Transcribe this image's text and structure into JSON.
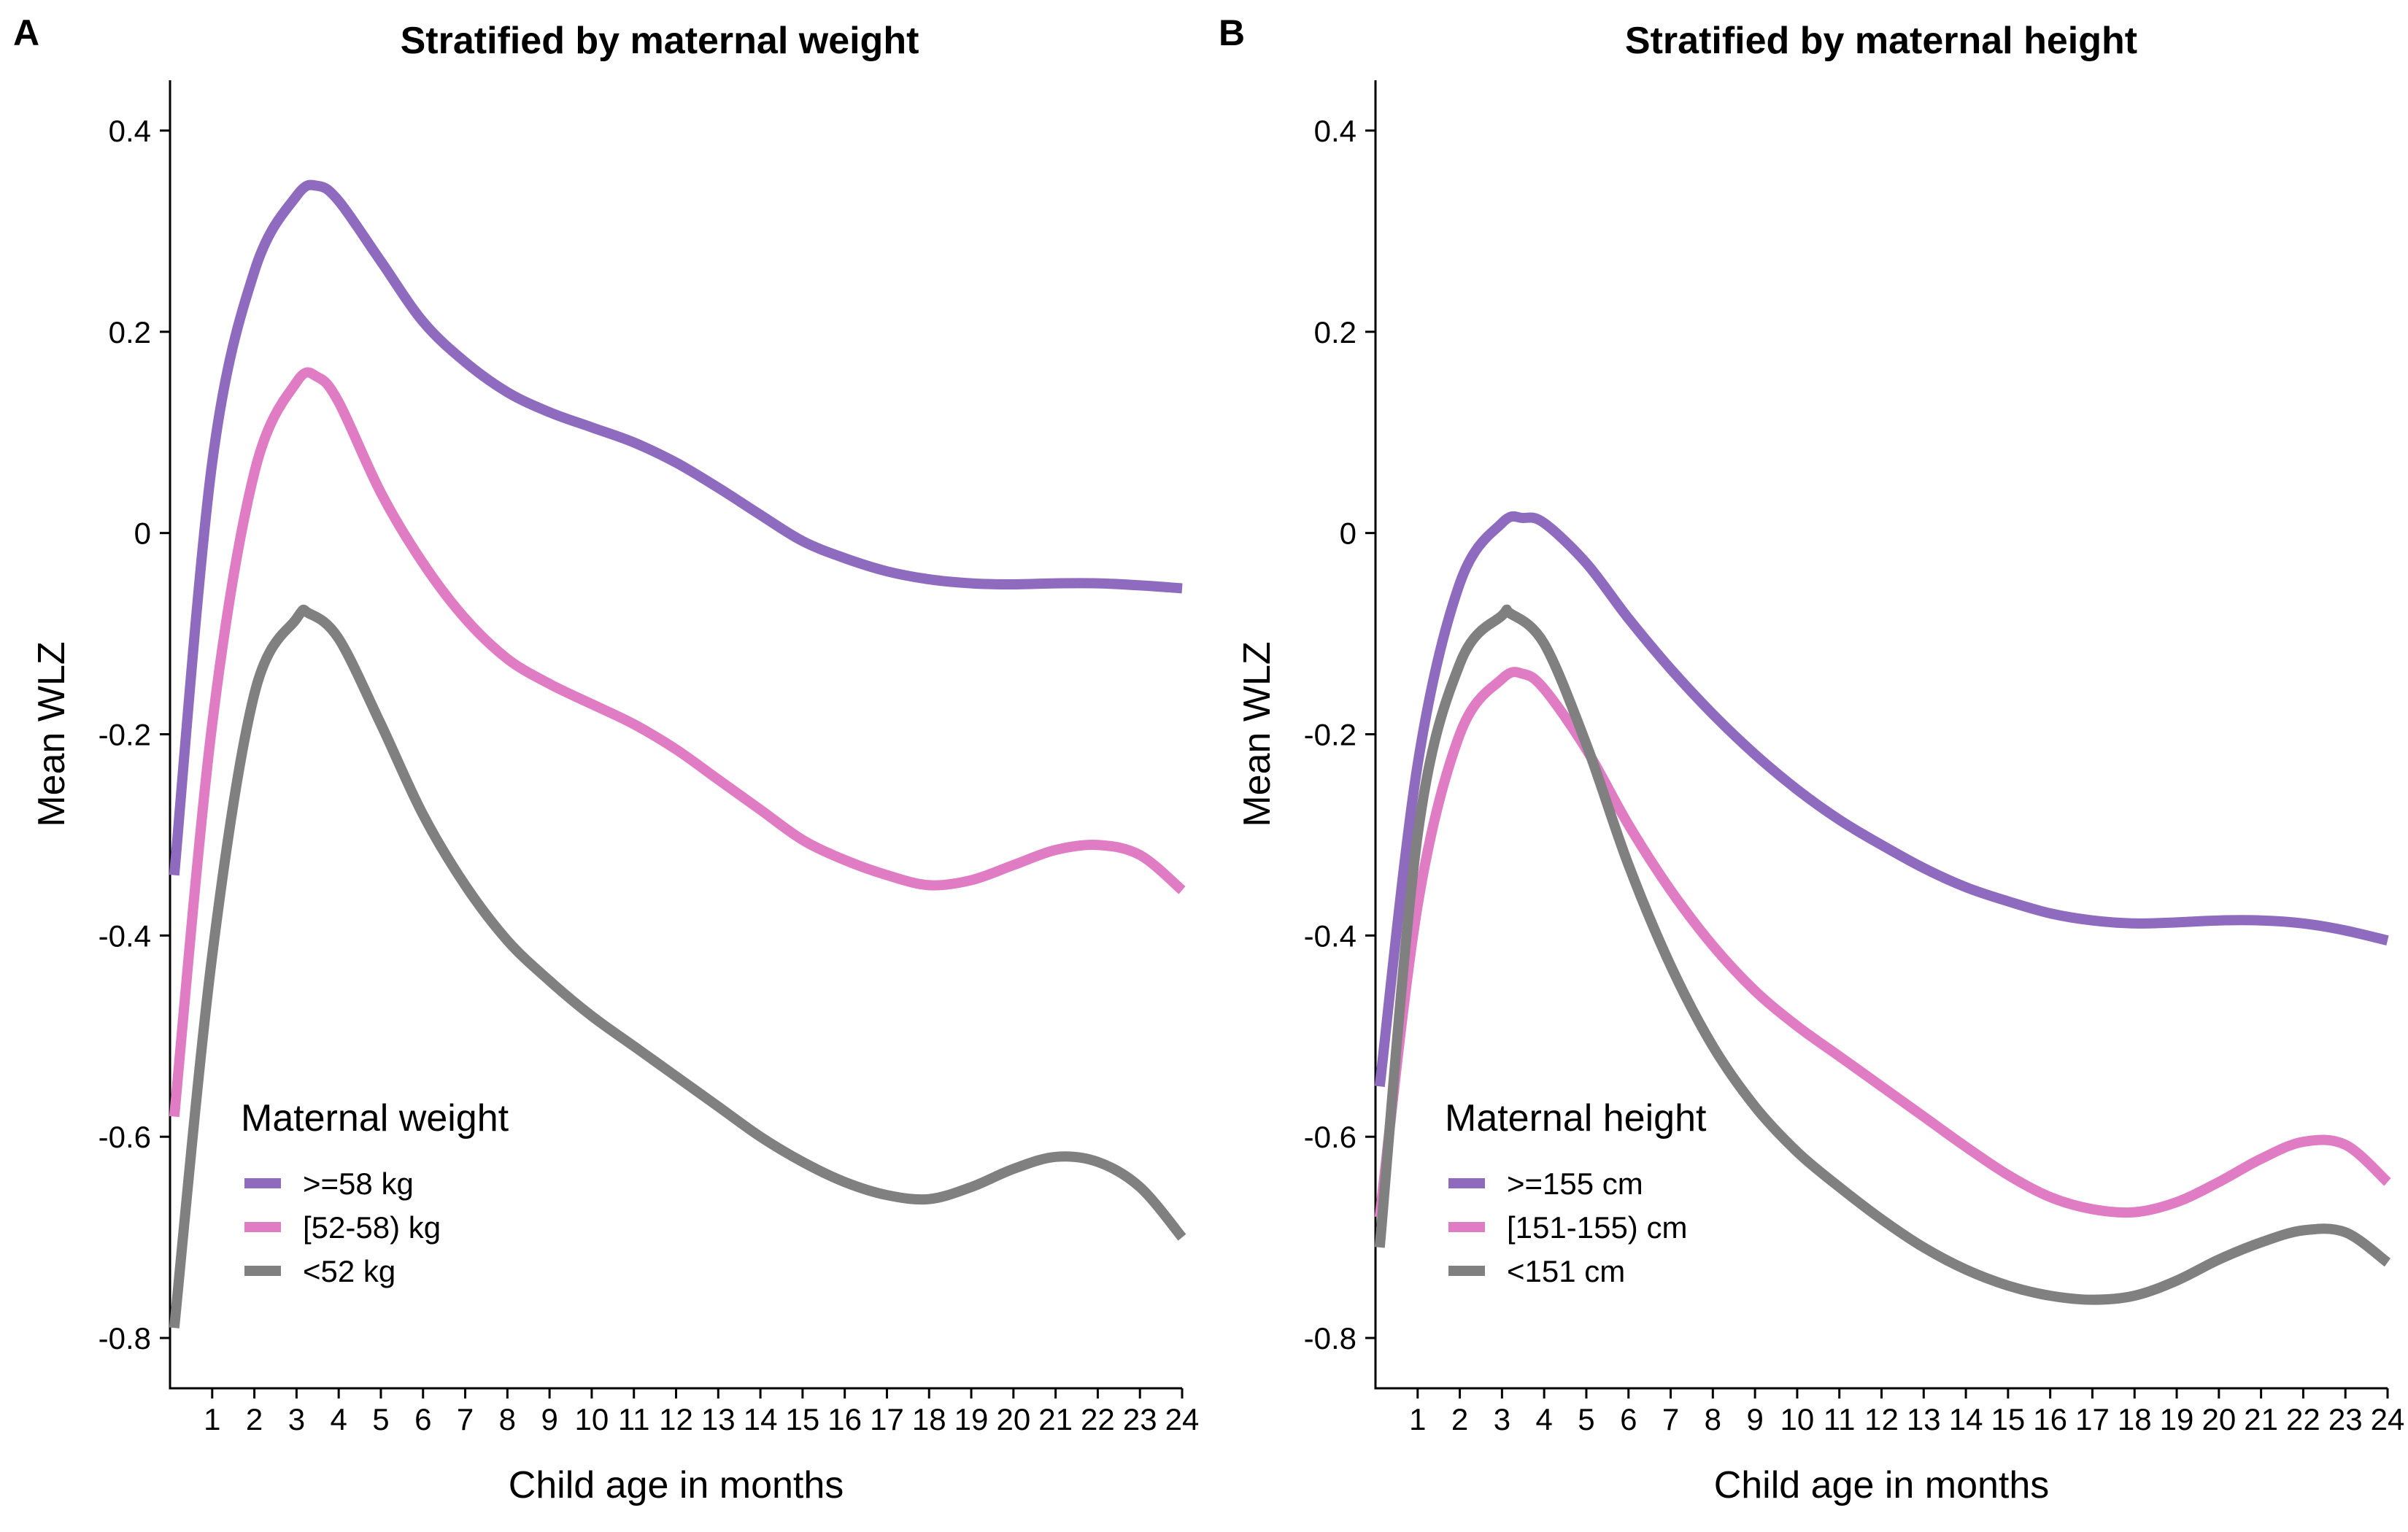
{
  "chart_data": [
    {
      "panel_letter": "A",
      "type": "line",
      "title": "Stratified by maternal weight",
      "xlabel": "Child age in months",
      "ylabel": "Mean WLZ",
      "xlim": [
        0,
        24
      ],
      "ylim": [
        -0.85,
        0.45
      ],
      "x_ticks": [
        1,
        2,
        3,
        4,
        5,
        6,
        7,
        8,
        9,
        10,
        11,
        12,
        13,
        14,
        15,
        16,
        17,
        18,
        19,
        20,
        21,
        22,
        23,
        24
      ],
      "x_tick_labels": [
        "1",
        "2",
        "3",
        "4",
        "5",
        "6",
        "7",
        "8",
        "9",
        "10",
        "11",
        "12",
        "13",
        "14",
        "15",
        "16",
        "17",
        "18",
        "19",
        "20",
        "21",
        "22",
        "23",
        "24"
      ],
      "y_ticks": [
        -0.8,
        -0.6,
        -0.4,
        -0.2,
        0,
        0.2,
        0.4
      ],
      "y_tick_labels": [
        "-0.8",
        "-0.6",
        "-0.4",
        "-0.2",
        "0",
        "0.2",
        "0.4"
      ],
      "grid": false,
      "legend": {
        "title": "Maternal weight",
        "position": "bottom-left"
      },
      "series": [
        {
          "name": ">=58 kg",
          "color": "#8E6BBF",
          "x": [
            0.1,
            1,
            2,
            3,
            3.5,
            4,
            5,
            6,
            7,
            8,
            9,
            10,
            11,
            12,
            13,
            14,
            15,
            16,
            17,
            18,
            19,
            20,
            21,
            22,
            23,
            24
          ],
          "y": [
            -0.34,
            0.07,
            0.26,
            0.335,
            0.345,
            0.33,
            0.27,
            0.21,
            0.17,
            0.14,
            0.12,
            0.105,
            0.09,
            0.07,
            0.045,
            0.018,
            -0.008,
            -0.025,
            -0.038,
            -0.046,
            -0.05,
            -0.051,
            -0.05,
            -0.05,
            -0.052,
            -0.055
          ]
        },
        {
          "name": "[52-58) kg",
          "color": "#E07CC3",
          "x": [
            0.1,
            1,
            2,
            3,
            3.5,
            4,
            5,
            6,
            7,
            8,
            9,
            10,
            11,
            12,
            13,
            14,
            15,
            16,
            17,
            18,
            19,
            20,
            21,
            22,
            23,
            24
          ],
          "y": [
            -0.58,
            -0.19,
            0.06,
            0.15,
            0.155,
            0.13,
            0.04,
            -0.03,
            -0.085,
            -0.125,
            -0.15,
            -0.17,
            -0.19,
            -0.215,
            -0.245,
            -0.275,
            -0.305,
            -0.325,
            -0.34,
            -0.35,
            -0.345,
            -0.33,
            -0.315,
            -0.31,
            -0.32,
            -0.355
          ]
        },
        {
          "name": "<52 kg",
          "color": "#808080",
          "x": [
            0.1,
            1,
            2,
            3,
            3.3,
            4,
            5,
            6,
            7,
            8,
            9,
            10,
            11,
            12,
            13,
            14,
            15,
            16,
            17,
            18,
            19,
            20,
            21,
            22,
            23,
            24
          ],
          "y": [
            -0.79,
            -0.42,
            -0.16,
            -0.085,
            -0.08,
            -0.105,
            -0.19,
            -0.28,
            -0.35,
            -0.405,
            -0.445,
            -0.48,
            -0.51,
            -0.54,
            -0.57,
            -0.6,
            -0.625,
            -0.645,
            -0.658,
            -0.662,
            -0.65,
            -0.632,
            -0.62,
            -0.625,
            -0.65,
            -0.7
          ]
        }
      ]
    },
    {
      "panel_letter": "B",
      "type": "line",
      "title": "Stratified by maternal height",
      "xlabel": "Child age in months",
      "ylabel": "Mean WLZ",
      "xlim": [
        0,
        24
      ],
      "ylim": [
        -0.85,
        0.45
      ],
      "x_ticks": [
        1,
        2,
        3,
        4,
        5,
        6,
        7,
        8,
        9,
        10,
        11,
        12,
        13,
        14,
        15,
        16,
        17,
        18,
        19,
        20,
        21,
        22,
        23,
        24
      ],
      "x_tick_labels": [
        "1",
        "2",
        "3",
        "4",
        "5",
        "6",
        "7",
        "8",
        "9",
        "10",
        "11",
        "12",
        "13",
        "14",
        "15",
        "16",
        "17",
        "18",
        "19",
        "20",
        "21",
        "22",
        "23",
        "24"
      ],
      "y_ticks": [
        -0.8,
        -0.6,
        -0.4,
        -0.2,
        0,
        0.2,
        0.4
      ],
      "y_tick_labels": [
        "-0.8",
        "-0.6",
        "-0.4",
        "-0.2",
        "0",
        "0.2",
        "0.4"
      ],
      "grid": false,
      "legend": {
        "title": "Maternal height",
        "position": "bottom-left"
      },
      "series": [
        {
          "name": ">=155 cm",
          "color": "#8E6BBF",
          "x": [
            0.1,
            1,
            2,
            3,
            3.5,
            4,
            5,
            6,
            7,
            8,
            9,
            10,
            11,
            12,
            13,
            14,
            15,
            16,
            17,
            18,
            19,
            20,
            21,
            22,
            23,
            24
          ],
          "y": [
            -0.55,
            -0.23,
            -0.05,
            0.01,
            0.015,
            0.01,
            -0.03,
            -0.085,
            -0.135,
            -0.18,
            -0.22,
            -0.255,
            -0.285,
            -0.31,
            -0.333,
            -0.352,
            -0.366,
            -0.378,
            -0.385,
            -0.388,
            -0.387,
            -0.385,
            -0.385,
            -0.388,
            -0.395,
            -0.405
          ]
        },
        {
          "name": "[151-155) cm",
          "color": "#E07CC3",
          "x": [
            0.1,
            1,
            2,
            3,
            3.5,
            4,
            5,
            6,
            7,
            8,
            9,
            10,
            11,
            12,
            13,
            14,
            15,
            16,
            17,
            18,
            19,
            20,
            21,
            22,
            23,
            24
          ],
          "y": [
            -0.68,
            -0.37,
            -0.2,
            -0.145,
            -0.14,
            -0.155,
            -0.215,
            -0.29,
            -0.355,
            -0.41,
            -0.455,
            -0.49,
            -0.52,
            -0.55,
            -0.58,
            -0.61,
            -0.638,
            -0.66,
            -0.672,
            -0.675,
            -0.665,
            -0.645,
            -0.622,
            -0.605,
            -0.608,
            -0.645
          ]
        },
        {
          "name": "<151 cm",
          "color": "#808080",
          "x": [
            0.1,
            1,
            2,
            3,
            3.2,
            4,
            5,
            6,
            7,
            8,
            9,
            10,
            11,
            12,
            13,
            14,
            15,
            16,
            17,
            18,
            19,
            20,
            21,
            22,
            23,
            24
          ],
          "y": [
            -0.71,
            -0.3,
            -0.13,
            -0.082,
            -0.08,
            -0.11,
            -0.21,
            -0.33,
            -0.43,
            -0.51,
            -0.57,
            -0.615,
            -0.65,
            -0.682,
            -0.71,
            -0.732,
            -0.748,
            -0.758,
            -0.762,
            -0.758,
            -0.743,
            -0.722,
            -0.705,
            -0.693,
            -0.695,
            -0.725
          ]
        }
      ]
    }
  ]
}
